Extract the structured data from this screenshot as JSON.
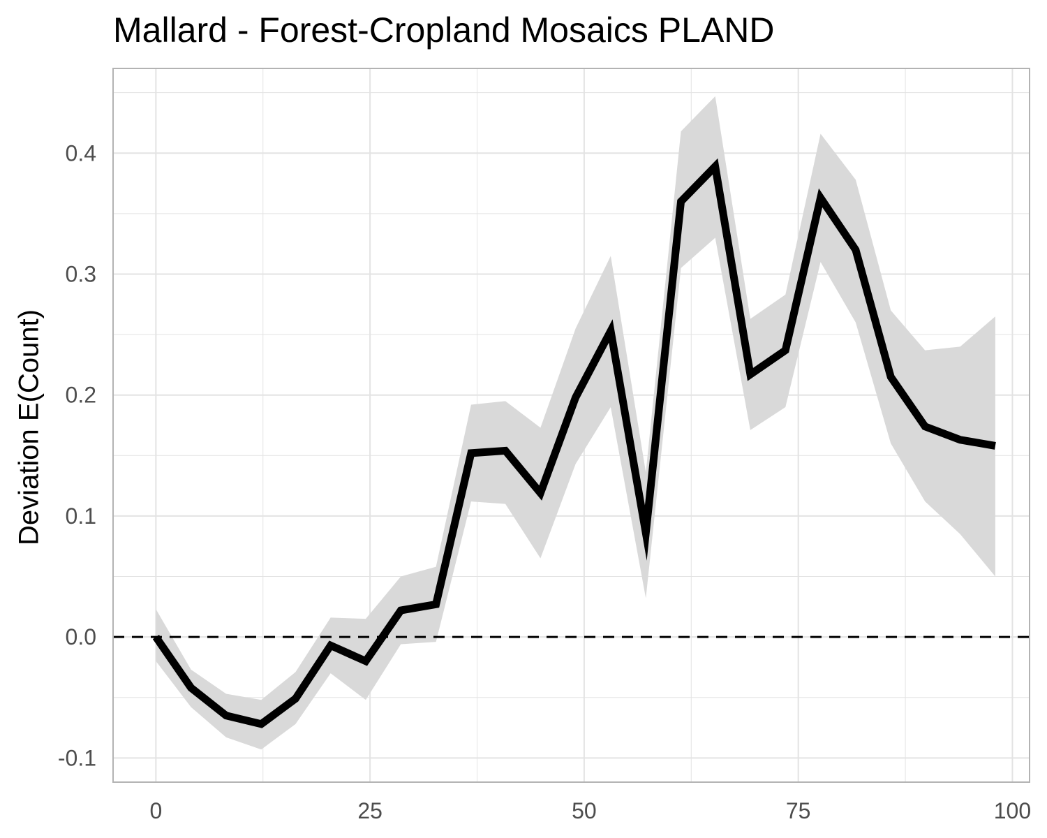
{
  "chart_data": {
    "type": "line",
    "title": "Mallard - Forest-Cropland Mosaics PLAND",
    "xlabel": "",
    "ylabel": "Deviation E(Count)",
    "xlim": [
      -5,
      102
    ],
    "ylim": [
      -0.12,
      0.47
    ],
    "x_ticks": [
      0,
      25,
      50,
      75,
      100
    ],
    "x_tick_labels": [
      "0",
      "25",
      "50",
      "75",
      "100"
    ],
    "y_ticks": [
      -0.1,
      0.0,
      0.1,
      0.2,
      0.3,
      0.4
    ],
    "y_tick_labels": [
      "-0.1",
      "0.0",
      "0.1",
      "0.2",
      "0.3",
      "0.4"
    ],
    "grid": true,
    "reference_line": {
      "y": 0,
      "style": "dashed",
      "color": "#000000"
    },
    "series": [
      {
        "x": [
          0,
          4.1,
          8.2,
          12.3,
          16.3,
          20.4,
          24.5,
          28.6,
          32.7,
          36.8,
          40.8,
          44.9,
          49.0,
          53.1,
          57.2,
          61.3,
          65.3,
          69.4,
          73.5,
          77.6,
          81.7,
          85.8,
          89.8,
          93.9,
          98.0
        ],
        "y": [
          0.0,
          -0.042,
          -0.065,
          -0.072,
          -0.051,
          -0.007,
          -0.02,
          0.022,
          0.027,
          0.152,
          0.154,
          0.119,
          0.198,
          0.253,
          0.086,
          0.36,
          0.389,
          0.217,
          0.237,
          0.363,
          0.32,
          0.215,
          0.174,
          0.163,
          0.158
        ],
        "lower": [
          -0.02,
          -0.058,
          -0.083,
          -0.093,
          -0.072,
          -0.03,
          -0.052,
          -0.006,
          -0.004,
          0.112,
          0.11,
          0.065,
          0.143,
          0.19,
          0.032,
          0.305,
          0.33,
          0.171,
          0.19,
          0.31,
          0.26,
          0.16,
          0.112,
          0.085,
          0.05
        ],
        "upper": [
          0.023,
          -0.027,
          -0.047,
          -0.052,
          -0.029,
          0.016,
          0.015,
          0.05,
          0.058,
          0.192,
          0.195,
          0.173,
          0.255,
          0.315,
          0.136,
          0.418,
          0.447,
          0.263,
          0.283,
          0.416,
          0.378,
          0.27,
          0.237,
          0.24,
          0.265
        ]
      }
    ],
    "colors": {
      "line": "#000000",
      "ribbon": "#d9d9d9",
      "grid": "#e3e3e3",
      "panel_border": "#b3b3b3",
      "tick_text": "#4d4d4d"
    }
  }
}
